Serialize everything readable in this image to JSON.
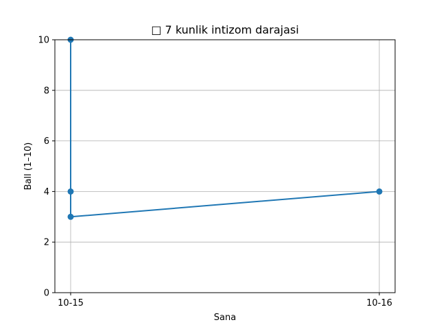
{
  "chart_data": {
    "type": "line",
    "title": "□ 7 kunlik intizom darajasi",
    "xlabel": "Sana",
    "ylabel": "Ball (1–10)",
    "categories": [
      "10-15",
      "10-16"
    ],
    "points": [
      {
        "x": "10-15",
        "y": 10
      },
      {
        "x": "10-15",
        "y": 4
      },
      {
        "x": "10-15",
        "y": 3
      },
      {
        "x": "10-16",
        "y": 4
      }
    ],
    "ylim": [
      0,
      10
    ],
    "yticks": [
      0,
      2,
      4,
      6,
      8,
      10
    ],
    "grid": true,
    "line_color": "#1f77b4"
  }
}
